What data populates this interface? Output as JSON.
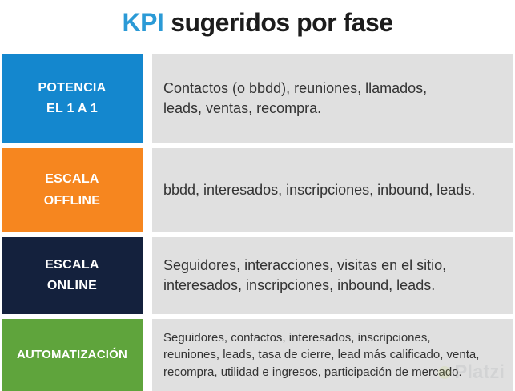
{
  "title": {
    "highlight": "KPI",
    "rest": "sugeridos por fase"
  },
  "colors": {
    "title_highlight": "#2b9ad6",
    "title_text": "#1c1c1c",
    "phase_potencia": "#1487ce",
    "phase_escala_offline": "#f6861f",
    "phase_escala_online": "#14213d",
    "phase_automatizacion": "#5fa43c",
    "content_background": "#e0e0e0",
    "content_text": "#333333",
    "phase_label_text": "#ffffff"
  },
  "rows": [
    {
      "phase": "POTENCIA EL 1 A 1",
      "label_lines": [
        "POTENCIA",
        "EL 1 A 1"
      ],
      "content": "Contactos (o bbdd), reuniones, llamados, leads, ventas, recompra.",
      "content_lines": [
        "Contactos (o bbdd), reuniones, llamados,",
        "leads, ventas, recompra."
      ]
    },
    {
      "phase": "ESCALA OFFLINE",
      "label_lines": [
        "ESCALA",
        "OFFLINE"
      ],
      "content": "bbdd, interesados, inscripciones, inbound, leads.",
      "content_lines": [
        "bbdd, interesados, inscripciones, inbound, leads."
      ]
    },
    {
      "phase": "ESCALA ONLINE",
      "label_lines": [
        "ESCALA",
        "ONLINE"
      ],
      "content": "Seguidores, interacciones, visitas en el sitio, interesados, inscripciones, inbound, leads.",
      "content_lines": [
        "Seguidores, interacciones, visitas en el sitio,",
        "interesados, inscripciones, inbound, leads."
      ]
    },
    {
      "phase": "AUTOMATIZACIÓN",
      "label_lines": [
        "AUTOMATIZACIÓN"
      ],
      "content": "Seguidores, contactos, interesados, inscripciones, reuniones, leads, tasa de cierre, lead más calificado, venta, recompra, utilidad e ingresos, participación de mercado.",
      "content_lines": [
        "Seguidores, contactos, interesados, inscripciones,",
        "reuniones, leads, tasa de cierre, lead más calificado, venta,",
        "recompra, utilidad e ingresos, participación de mercado."
      ]
    }
  ],
  "watermark": {
    "text": "Platzi"
  }
}
